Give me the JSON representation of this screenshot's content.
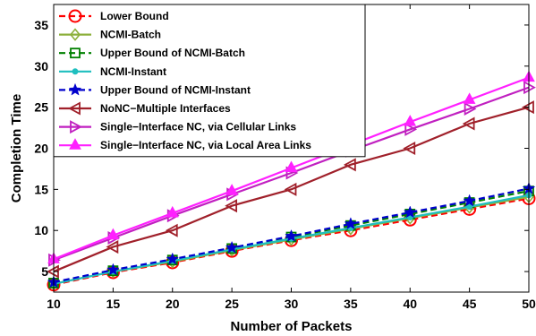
{
  "chart_data": {
    "type": "line",
    "title": "",
    "xlabel": "Number of Packets",
    "ylabel": "Completion Time",
    "x": [
      10,
      15,
      20,
      25,
      30,
      35,
      40,
      45,
      50
    ],
    "xlim": [
      10,
      50
    ],
    "ylim": [
      2.5,
      37.5
    ],
    "xticks": [
      10,
      15,
      20,
      25,
      30,
      35,
      40,
      45,
      50
    ],
    "yticks": [
      5,
      10,
      15,
      20,
      25,
      30,
      35
    ],
    "grid": false,
    "legend_position": "top-left",
    "series": [
      {
        "name": "Lower Bound",
        "color": "#ff0000",
        "dash": "dashed",
        "marker": "circle",
        "values": [
          3.4,
          4.9,
          6.1,
          7.5,
          8.8,
          10.0,
          11.3,
          12.6,
          13.9
        ]
      },
      {
        "name": "NCMI-Batch",
        "color": "#8db03c",
        "dash": "solid",
        "marker": "diamond",
        "values": [
          3.5,
          5.0,
          6.2,
          7.6,
          8.9,
          10.2,
          11.5,
          12.8,
          14.1
        ]
      },
      {
        "name": "Upper Bound of NCMI-Batch",
        "color": "#008000",
        "dash": "dashed",
        "marker": "square",
        "values": [
          3.6,
          5.1,
          6.4,
          7.8,
          9.2,
          10.6,
          12.0,
          13.4,
          14.8
        ]
      },
      {
        "name": "NCMI-Instant",
        "color": "#1fbfbf",
        "dash": "solid",
        "marker": "dot",
        "values": [
          3.5,
          5.0,
          6.3,
          7.7,
          9.0,
          10.3,
          11.6,
          12.9,
          14.3
        ]
      },
      {
        "name": "Upper Bound of NCMI-Instant",
        "color": "#0000cc",
        "dash": "dashed",
        "marker": "star",
        "values": [
          3.7,
          5.2,
          6.5,
          7.9,
          9.3,
          10.8,
          12.2,
          13.6,
          15.1
        ]
      },
      {
        "name": "NoNC−Multiple Interfaces",
        "color": "#a0202a",
        "dash": "solid",
        "marker": "triangle-left",
        "values": [
          5.0,
          8.0,
          10.0,
          13.0,
          15.0,
          18.0,
          20.0,
          23.0,
          25.0
        ]
      },
      {
        "name": "Single−Interface NC, via Cellular Links",
        "color": "#c020c0",
        "dash": "solid",
        "marker": "triangle-right",
        "values": [
          6.4,
          9.1,
          11.8,
          14.4,
          17.0,
          19.7,
          22.3,
          24.8,
          27.4
        ]
      },
      {
        "name": "Single−Interface NC, via Local Area Links",
        "color": "#ff20ff",
        "dash": "solid",
        "marker": "triangle-up",
        "values": [
          6.5,
          9.4,
          12.1,
          14.8,
          17.6,
          20.4,
          23.2,
          25.9,
          28.6
        ]
      }
    ]
  }
}
